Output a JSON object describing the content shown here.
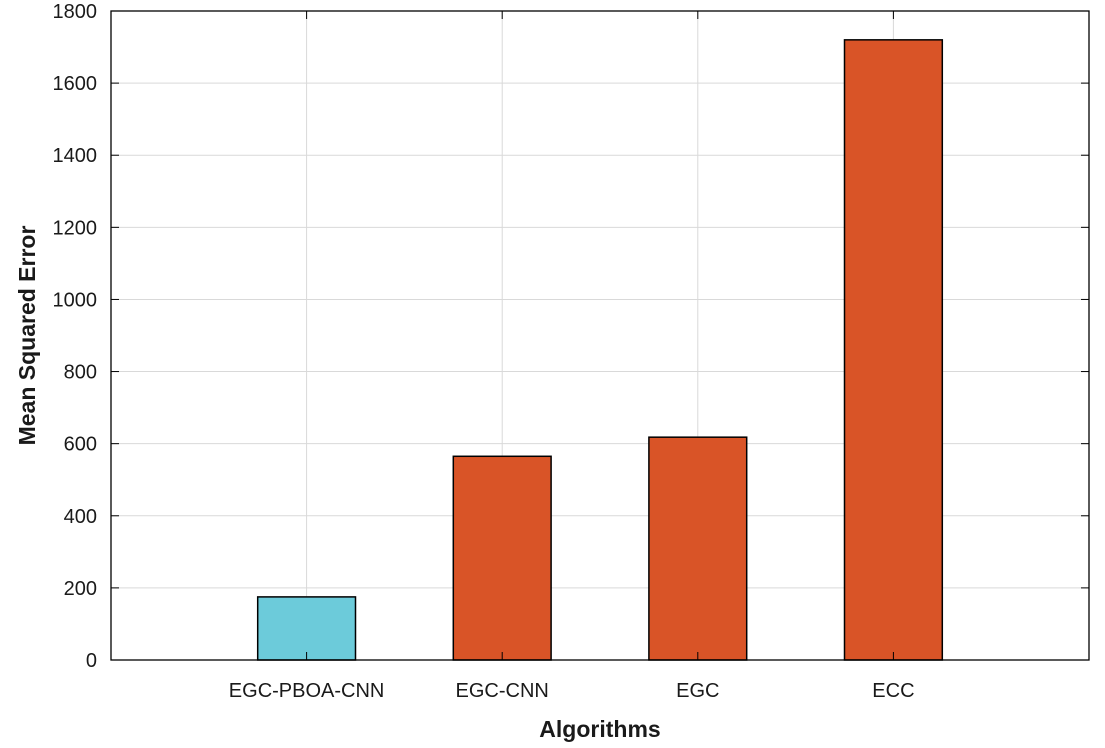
{
  "chart_data": {
    "type": "bar",
    "title": "",
    "xlabel": "Algorithms",
    "ylabel": "Mean Squared Error",
    "categories": [
      "EGC-PBOA-CNN",
      "EGC-CNN",
      "EGC",
      "ECC"
    ],
    "values": [
      175,
      565,
      618,
      1720
    ],
    "ylim": [
      0,
      1800
    ],
    "yticks": [
      0,
      200,
      400,
      600,
      800,
      1000,
      1200,
      1400,
      1600,
      1800
    ],
    "grid": true,
    "legend": "none",
    "colors": {
      "highlight": "#6CCBDA",
      "bar": "#D95427",
      "bar_edge": "#000000",
      "grid": "#d9d9d9",
      "axis": "#000000"
    }
  }
}
